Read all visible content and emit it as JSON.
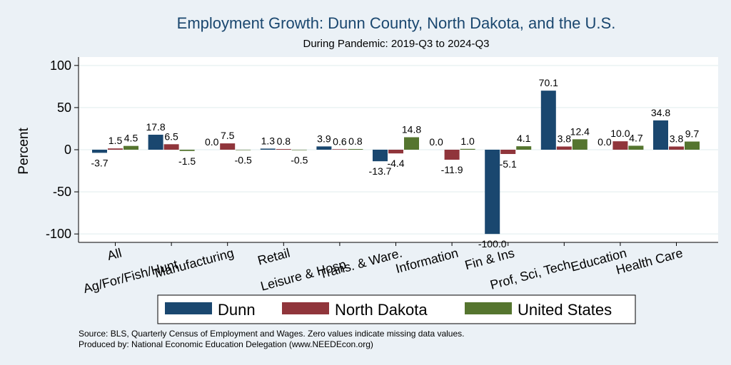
{
  "chart_data": {
    "type": "bar",
    "title": "Employment Growth: Dunn County, North Dakota, and the U.S.",
    "subtitle": "During Pandemic: 2019-Q3 to 2024-Q3",
    "ylabel": "Percent",
    "xlabel": "",
    "ylim": [
      -110,
      110
    ],
    "yticks": [
      -100,
      -50,
      0,
      50,
      100
    ],
    "grid": true,
    "legend_position": "bottom",
    "categories": [
      "All",
      "Ag/For/Fish/Hunt",
      "Manufacturing",
      "Retail",
      "Leisure & Hosp",
      "Trans. & Ware.",
      "Information",
      "Fin & Ins",
      "Prof, Sci, Tech",
      "Education",
      "Health Care"
    ],
    "series": [
      {
        "name": "Dunn",
        "color": "#1a476f",
        "values": [
          -3.7,
          17.8,
          0.0,
          1.3,
          3.9,
          -13.7,
          0.0,
          -100.0,
          70.1,
          0.0,
          34.8
        ],
        "labels": [
          "-3.7",
          "17.8",
          "0.0",
          "1.3",
          "3.9",
          "-13.7",
          "0.0",
          "-100.0",
          "70.1",
          "0.0",
          "34.8"
        ]
      },
      {
        "name": "North Dakota",
        "color": "#90353b",
        "values": [
          1.5,
          6.5,
          7.5,
          0.8,
          0.6,
          -4.4,
          -11.9,
          -5.1,
          3.8,
          10.0,
          3.8
        ],
        "labels": [
          "1.5",
          "6.5",
          "7.5",
          "0.8",
          "0.6",
          "-4.4",
          "-11.9",
          "-5.1",
          "3.8",
          "10.0",
          "3.8"
        ]
      },
      {
        "name": "United States",
        "color": "#55752f",
        "values": [
          4.5,
          -1.5,
          -0.5,
          -0.5,
          0.8,
          14.8,
          1.0,
          4.1,
          12.4,
          4.7,
          9.7
        ],
        "labels": [
          "4.5",
          "-1.5",
          "-0.5",
          "-0.5",
          "0.8",
          "14.8",
          "1.0",
          "4.1",
          "12.4",
          "4.7",
          "9.7"
        ]
      }
    ],
    "notes": [
      "Source: BLS, Quarterly Census of Employment and Wages. Zero values indicate missing data values.",
      "Produced by: National Economic Education Delegation (www.NEEDEcon.org)"
    ]
  }
}
